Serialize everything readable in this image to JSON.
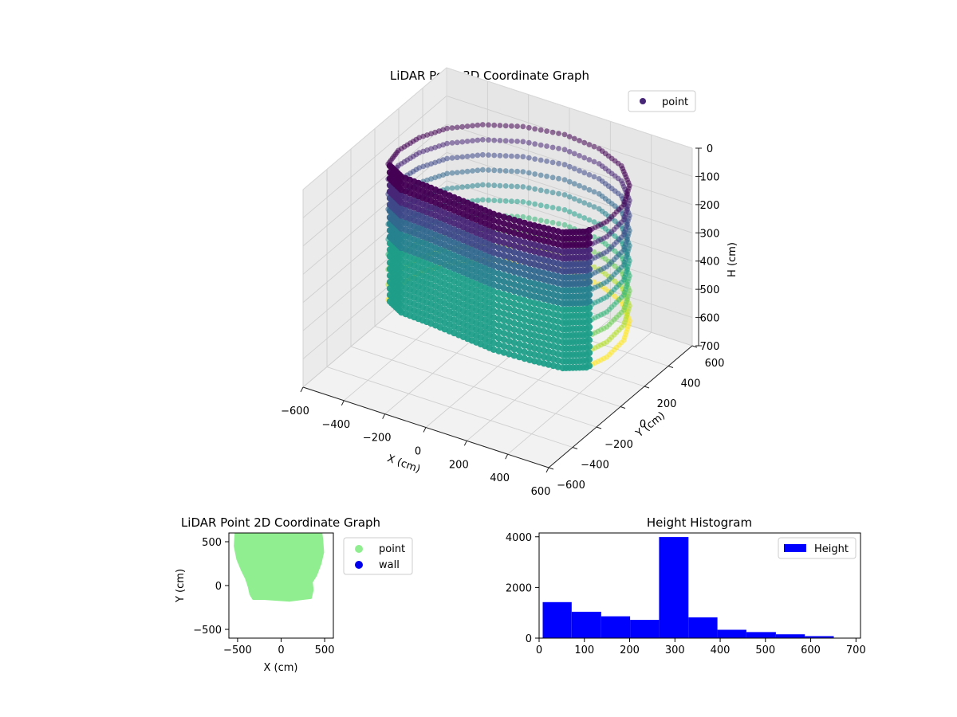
{
  "chart_data": [
    {
      "type": "scatter3d",
      "title": "LiDAR Point 3D Coordinate Graph",
      "xlabel": "X (cm)",
      "ylabel": "Y (cm)",
      "zlabel": "H (cm)",
      "xlim": [
        -600,
        600
      ],
      "ylim": [
        -600,
        600
      ],
      "zlim": [
        0,
        700
      ],
      "z_inverted": true,
      "xticks": [
        "−600",
        "−400",
        "−200",
        "0",
        "200",
        "400",
        "600"
      ],
      "yticks": [
        "−600",
        "−400",
        "−200",
        "0",
        "200",
        "400",
        "600"
      ],
      "zticks": [
        "0",
        "100",
        "200",
        "300",
        "400",
        "500",
        "600",
        "700"
      ],
      "grid": true,
      "colormap": "viridis",
      "legend": {
        "placement": "top-right",
        "entries": [
          {
            "name": "point",
            "color": "#482677"
          }
        ]
      },
      "series": [
        {
          "name": "point",
          "description_shape": "ring of vertical point columns around sensor, dense wall toward negative Y",
          "ring_points_xy": [
            [
              -520,
              60
            ],
            [
              -500,
              200
            ],
            [
              -440,
              330
            ],
            [
              -330,
              440
            ],
            [
              -180,
              520
            ],
            [
              0,
              560
            ],
            [
              180,
              540
            ],
            [
              330,
              470
            ],
            [
              440,
              350
            ],
            [
              500,
              200
            ],
            [
              510,
              40
            ],
            [
              480,
              -80
            ],
            [
              400,
              -140
            ],
            [
              250,
              -160
            ],
            [
              80,
              -170
            ],
            [
              -80,
              -150
            ],
            [
              -250,
              -130
            ],
            [
              -400,
              -120
            ],
            [
              -500,
              -60
            ]
          ],
          "height_range": [
            80,
            560
          ]
        }
      ]
    },
    {
      "type": "scatter",
      "title": "LiDAR Point 2D Coordinate Graph",
      "xlabel": "X (cm)",
      "ylabel": "Y (cm)",
      "xlim": [
        -600,
        600
      ],
      "ylim": [
        -600,
        600
      ],
      "xticks": [
        "−500",
        "0",
        "500"
      ],
      "yticks": [
        "500",
        "0",
        "−500"
      ],
      "legend": {
        "placement": "outside-right",
        "entries": [
          {
            "name": "point",
            "color": "#90ee90"
          },
          {
            "name": "wall",
            "color": "#0000ee"
          }
        ]
      },
      "series": [
        {
          "name": "point",
          "color": "#90ee90",
          "outline_xy": [
            [
              -520,
              600
            ],
            [
              -530,
              450
            ],
            [
              -500,
              300
            ],
            [
              -450,
              180
            ],
            [
              -400,
              80
            ],
            [
              -370,
              -10
            ],
            [
              -350,
              -100
            ],
            [
              -320,
              -150
            ],
            [
              -200,
              -150
            ],
            [
              -50,
              -160
            ],
            [
              100,
              -170
            ],
            [
              250,
              -150
            ],
            [
              340,
              -140
            ],
            [
              360,
              -50
            ],
            [
              350,
              40
            ],
            [
              400,
              120
            ],
            [
              450,
              250
            ],
            [
              480,
              380
            ],
            [
              470,
              520
            ],
            [
              460,
              600
            ]
          ]
        },
        {
          "name": "wall",
          "color": "#0000ee",
          "points": []
        }
      ]
    },
    {
      "type": "bar",
      "subtype": "histogram",
      "title": "Height Histogram",
      "xlabel": "",
      "ylabel": "",
      "xlim": [
        0,
        710
      ],
      "ylim": [
        0,
        4150
      ],
      "xticks": [
        "0",
        "100",
        "200",
        "300",
        "400",
        "500",
        "600",
        "700"
      ],
      "yticks": [
        "0",
        "2000",
        "4000"
      ],
      "color": "#0000ff",
      "legend": {
        "placement": "top-right",
        "entries": [
          {
            "name": "Height",
            "color": "#0000ff"
          }
        ]
      },
      "bin_edges": [
        8,
        72,
        137,
        201,
        265,
        330,
        394,
        458,
        523,
        587,
        651
      ],
      "counts": [
        1420,
        1040,
        860,
        720,
        3990,
        820,
        330,
        240,
        150,
        80
      ]
    }
  ]
}
